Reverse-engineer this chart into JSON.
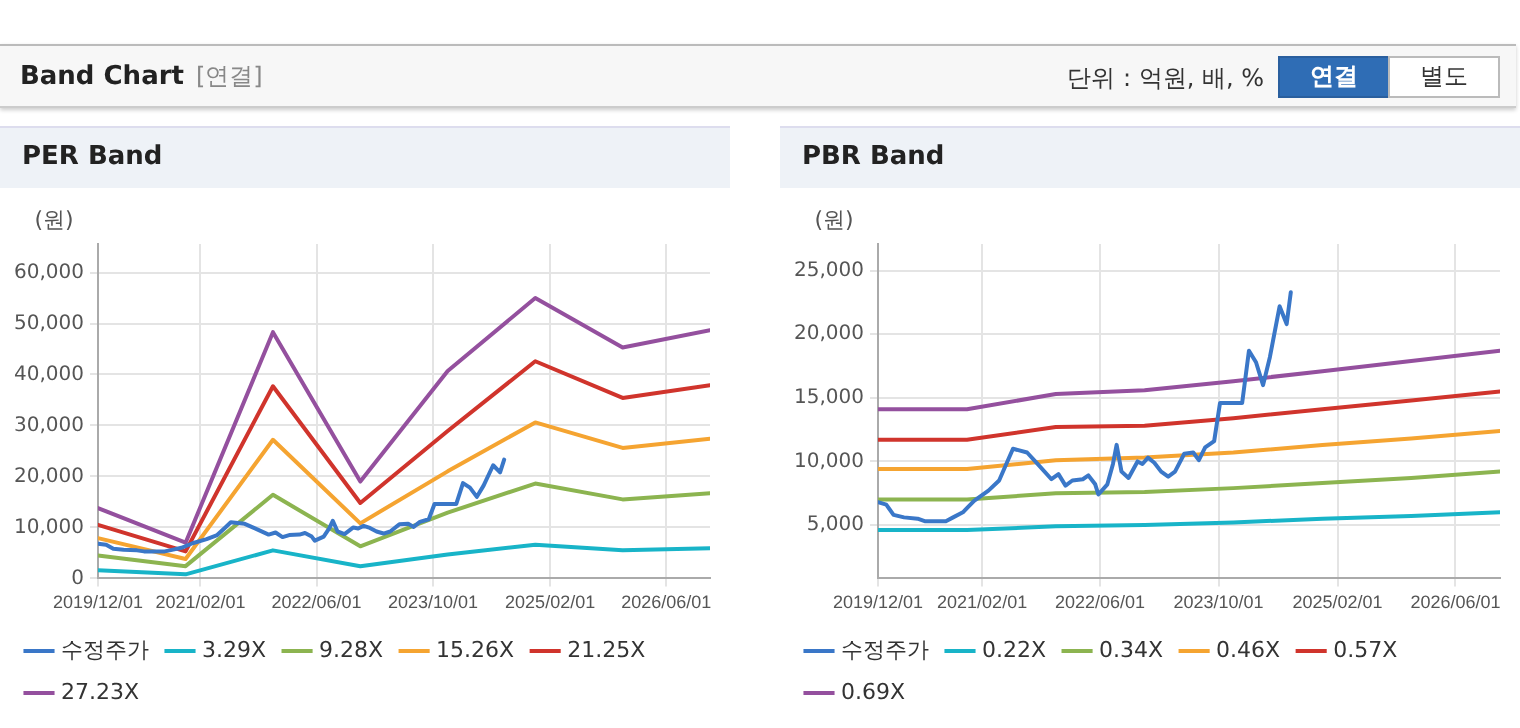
{
  "chart_data": [
    {
      "type": "other",
      "title": "Band Chart",
      "annotations": [
        "[연결]",
        "단위 : 억원, 배, %",
        "연결",
        "별도"
      ]
    },
    {
      "type": "line",
      "title": "PER Band",
      "ylabel": "(원)",
      "x": [
        "2019-12-01",
        "2020-12-01",
        "2021-12-01",
        "2022-12-01",
        "2023-12-01",
        "2024-12-01",
        "2025-12-01",
        "2026-12-01"
      ],
      "xlim": [
        "2019-12-01",
        "2026-12-01"
      ],
      "xticks": [
        {
          "value": "2019-12-01",
          "label": "2019/12/01"
        },
        {
          "value": "2021-02-01",
          "label": "2021/02/01"
        },
        {
          "value": "2022-06-01",
          "label": "2022/06/01"
        },
        {
          "value": "2023-10-01",
          "label": "2023/10/01"
        },
        {
          "value": "2025-02-01",
          "label": "2025/02/01"
        },
        {
          "value": "2026-06-01",
          "label": "2026/06/01"
        }
      ],
      "ylim": [
        0,
        65600
      ],
      "yticks": [
        0,
        {
          "value": 10000,
          "label": "10,000"
        },
        {
          "value": 20000,
          "label": "20,000"
        },
        {
          "value": 30000,
          "label": "30,000"
        },
        {
          "value": 40000,
          "label": "40,000"
        },
        {
          "value": 50000,
          "label": "50,000"
        },
        {
          "value": 60000,
          "label": "60,000"
        }
      ],
      "grid": true,
      "legend": "bottom",
      "marker": "none",
      "line_style": "solid",
      "series": [
        {
          "name": "수정주가",
          "color": "#3a77c8",
          "x": [
            "2019-12-01",
            "2020-01-04",
            "2020-02-03",
            "2020-03-17",
            "2020-05-12",
            "2020-06-10",
            "2020-09-05",
            "2020-10-05",
            "2020-11-14",
            "2020-12-30",
            "2021-02-27",
            "2021-04-12",
            "2021-05-16",
            "2021-06-08",
            "2021-08-05",
            "2021-09-17",
            "2021-11-13",
            "2021-12-12",
            "2022-01-10",
            "2022-02-07",
            "2022-03-22",
            "2022-04-14",
            "2022-05-12",
            "2022-05-25",
            "2022-07-01",
            "2022-07-24",
            "2022-08-08",
            "2022-08-28",
            "2022-09-26",
            "2022-11-02",
            "2022-11-22",
            "2022-12-15",
            "2023-01-10",
            "2023-02-07",
            "2023-03-08",
            "2023-04-05",
            "2023-05-13",
            "2023-06-19",
            "2023-07-12",
            "2023-08-07",
            "2023-09-13",
            "2023-10-07",
            "2023-11-15",
            "2024-01-06",
            "2024-02-03",
            "2024-03-03",
            "2024-04-01",
            "2024-04-29",
            "2024-06-08",
            "2024-07-07",
            "2024-07-24"
          ],
          "values": [
            6800,
            6600,
            5800,
            5600,
            5500,
            5300,
            5300,
            5600,
            6000,
            6900,
            7700,
            8500,
            10000,
            11000,
            10700,
            9800,
            8600,
            9000,
            8100,
            8500,
            8600,
            8900,
            8200,
            7400,
            8200,
            9800,
            11300,
            9200,
            8700,
            10000,
            9800,
            10300,
            9900,
            9200,
            8800,
            9200,
            10600,
            10700,
            10100,
            11100,
            11600,
            14600,
            14600,
            14600,
            18700,
            17800,
            16000,
            18200,
            22200,
            20800,
            23300
          ]
        },
        {
          "name": "3.29X",
          "color": "#18b4c8",
          "values": [
            1600,
            800,
            5500,
            2400,
            4700,
            6600,
            5500,
            5900
          ]
        },
        {
          "name": "9.28X",
          "color": "#8cb450",
          "values": [
            4500,
            2400,
            16400,
            6300,
            12900,
            18600,
            15500,
            16700
          ]
        },
        {
          "name": "15.26X",
          "color": "#f5a431",
          "values": [
            7900,
            3800,
            27200,
            10800,
            21000,
            30600,
            25600,
            27400
          ]
        },
        {
          "name": "21.25X",
          "color": "#d0342c",
          "values": [
            10500,
            5300,
            37700,
            14800,
            28900,
            42600,
            35400,
            37900
          ]
        },
        {
          "name": "27.23X",
          "color": "#94509e",
          "values": [
            13800,
            7000,
            48300,
            19000,
            40700,
            55000,
            45300,
            48700
          ]
        }
      ]
    },
    {
      "type": "line",
      "title": "PBR Band",
      "ylabel": "(원)",
      "x": [
        "2019-12-01",
        "2020-12-01",
        "2021-12-01",
        "2022-12-01",
        "2023-12-01",
        "2024-12-01",
        "2025-12-01",
        "2026-12-01"
      ],
      "xlim": [
        "2019-12-01",
        "2026-12-01"
      ],
      "xticks": [
        {
          "value": "2019-12-01",
          "label": "2019/12/01"
        },
        {
          "value": "2021-02-01",
          "label": "2021/02/01"
        },
        {
          "value": "2022-06-01",
          "label": "2022/06/01"
        },
        {
          "value": "2023-10-01",
          "label": "2023/10/01"
        },
        {
          "value": "2025-02-01",
          "label": "2025/02/01"
        },
        {
          "value": "2026-06-01",
          "label": "2026/06/01"
        }
      ],
      "ylim": [
        800,
        27100
      ],
      "yticks": [
        {
          "value": 5000,
          "label": "5,000"
        },
        {
          "value": 10000,
          "label": "10,000"
        },
        {
          "value": 15000,
          "label": "15,000"
        },
        {
          "value": 20000,
          "label": "20,000"
        },
        {
          "value": 25000,
          "label": "25,000"
        }
      ],
      "grid": true,
      "legend": "bottom",
      "marker": "none",
      "line_style": "solid",
      "series": [
        {
          "name": "수정주가",
          "color": "#3a77c8",
          "x": [
            "2019-12-01",
            "2020-01-04",
            "2020-02-03",
            "2020-03-17",
            "2020-05-12",
            "2020-06-10",
            "2020-09-05",
            "2020-10-05",
            "2020-11-14",
            "2020-12-30",
            "2021-02-27",
            "2021-04-12",
            "2021-05-16",
            "2021-06-08",
            "2021-08-05",
            "2021-09-17",
            "2021-11-13",
            "2021-12-12",
            "2022-01-10",
            "2022-02-07",
            "2022-03-22",
            "2022-04-14",
            "2022-05-12",
            "2022-05-25",
            "2022-07-01",
            "2022-07-24",
            "2022-08-08",
            "2022-08-28",
            "2022-09-26",
            "2022-11-02",
            "2022-11-22",
            "2022-12-15",
            "2023-01-10",
            "2023-02-07",
            "2023-03-08",
            "2023-04-05",
            "2023-05-13",
            "2023-06-19",
            "2023-07-12",
            "2023-08-07",
            "2023-09-13",
            "2023-10-07",
            "2023-11-15",
            "2024-01-06",
            "2024-02-03",
            "2024-03-03",
            "2024-04-01",
            "2024-04-29",
            "2024-06-08",
            "2024-07-07",
            "2024-07-24"
          ],
          "values": [
            6800,
            6600,
            5800,
            5600,
            5500,
            5300,
            5300,
            5600,
            6000,
            6900,
            7700,
            8500,
            10000,
            11000,
            10700,
            9800,
            8600,
            9000,
            8100,
            8500,
            8600,
            8900,
            8200,
            7400,
            8200,
            9800,
            11300,
            9200,
            8700,
            10000,
            9800,
            10300,
            9900,
            9200,
            8800,
            9200,
            10600,
            10700,
            10100,
            11100,
            11600,
            14600,
            14600,
            14600,
            18700,
            17800,
            16000,
            18200,
            22200,
            20800,
            23300
          ]
        },
        {
          "name": "0.22X",
          "color": "#18b4c8",
          "values": [
            4600,
            4600,
            4900,
            5000,
            5200,
            5500,
            5700,
            6000
          ]
        },
        {
          "name": "0.34X",
          "color": "#8cb450",
          "values": [
            7000,
            7000,
            7500,
            7600,
            7900,
            8300,
            8700,
            9200
          ]
        },
        {
          "name": "0.46X",
          "color": "#f5a431",
          "values": [
            9400,
            9400,
            10100,
            10300,
            10700,
            11300,
            11800,
            12400
          ]
        },
        {
          "name": "0.57X",
          "color": "#d0342c",
          "values": [
            11700,
            11700,
            12700,
            12800,
            13400,
            14100,
            14800,
            15500
          ]
        },
        {
          "name": "0.69X",
          "color": "#94509e",
          "values": [
            14100,
            14100,
            15300,
            15600,
            16300,
            17100,
            17900,
            18700
          ]
        }
      ]
    }
  ]
}
